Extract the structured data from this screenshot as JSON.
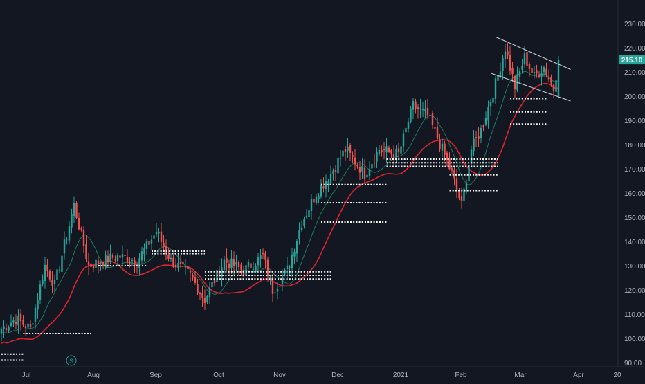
{
  "chart_data": {
    "type": "candlestick",
    "x_tick_labels": [
      "Jul",
      "Aug",
      "Sep",
      "Oct",
      "Nov",
      "Dec",
      "2021",
      "Feb",
      "Mar",
      "Apr",
      "20"
    ],
    "y_tick_labels": [
      "90.00",
      "100.00",
      "110.00",
      "120.00",
      "130.00",
      "140.00",
      "150.00",
      "160.00",
      "170.00",
      "180.00",
      "190.00",
      "200.00",
      "210.00",
      "220.00",
      "230.00"
    ],
    "ylim": [
      88,
      235
    ],
    "last_price": "215.10",
    "last_price_value": 215.1,
    "event_marker": "S",
    "anchors": [
      {
        "i": 0,
        "v": 104
      },
      {
        "i": 6,
        "v": 108
      },
      {
        "i": 12,
        "v": 104
      },
      {
        "i": 18,
        "v": 130
      },
      {
        "i": 22,
        "v": 122
      },
      {
        "i": 30,
        "v": 155
      },
      {
        "i": 36,
        "v": 130
      },
      {
        "i": 48,
        "v": 134
      },
      {
        "i": 56,
        "v": 132
      },
      {
        "i": 64,
        "v": 144
      },
      {
        "i": 70,
        "v": 132
      },
      {
        "i": 78,
        "v": 126
      },
      {
        "i": 84,
        "v": 116
      },
      {
        "i": 92,
        "v": 132
      },
      {
        "i": 100,
        "v": 128
      },
      {
        "i": 108,
        "v": 134
      },
      {
        "i": 112,
        "v": 120
      },
      {
        "i": 118,
        "v": 128
      },
      {
        "i": 124,
        "v": 148
      },
      {
        "i": 130,
        "v": 160
      },
      {
        "i": 136,
        "v": 168
      },
      {
        "i": 142,
        "v": 178
      },
      {
        "i": 150,
        "v": 168
      },
      {
        "i": 156,
        "v": 178
      },
      {
        "i": 164,
        "v": 176
      },
      {
        "i": 170,
        "v": 196
      },
      {
        "i": 176,
        "v": 192
      },
      {
        "i": 182,
        "v": 178
      },
      {
        "i": 186,
        "v": 168
      },
      {
        "i": 190,
        "v": 155
      },
      {
        "i": 194,
        "v": 178
      },
      {
        "i": 198,
        "v": 186
      },
      {
        "i": 204,
        "v": 205
      },
      {
        "i": 208,
        "v": 220
      },
      {
        "i": 212,
        "v": 204
      },
      {
        "i": 216,
        "v": 216
      },
      {
        "i": 220,
        "v": 208
      },
      {
        "i": 224,
        "v": 212
      },
      {
        "i": 228,
        "v": 203
      },
      {
        "i": 230,
        "v": 215
      }
    ],
    "ma_fast_period": 10,
    "ma_slow_period": 20,
    "levels": [
      {
        "from": 0,
        "to": 9,
        "value": 93.5
      },
      {
        "from": 0,
        "to": 9,
        "value": 91.0
      },
      {
        "from": 9,
        "to": 37,
        "value": 102.0
      },
      {
        "from": 40,
        "to": 60,
        "value": 130.0
      },
      {
        "from": 62,
        "to": 84,
        "value": 136.0
      },
      {
        "from": 62,
        "to": 84,
        "value": 135.0
      },
      {
        "from": 84,
        "to": 136,
        "value": 127.5
      },
      {
        "from": 84,
        "to": 136,
        "value": 126.0
      },
      {
        "from": 84,
        "to": 136,
        "value": 124.5
      },
      {
        "from": 132,
        "to": 159,
        "value": 163.5
      },
      {
        "from": 132,
        "to": 159,
        "value": 156.0
      },
      {
        "from": 132,
        "to": 159,
        "value": 148.0
      },
      {
        "from": 159,
        "to": 205,
        "value": 174.0
      },
      {
        "from": 159,
        "to": 205,
        "value": 172.5
      },
      {
        "from": 159,
        "to": 205,
        "value": 171.0
      },
      {
        "from": 185,
        "to": 205,
        "value": 167.5
      },
      {
        "from": 185,
        "to": 205,
        "value": 161.0
      },
      {
        "from": 210,
        "to": 225,
        "value": 199.0
      },
      {
        "from": 210,
        "to": 225,
        "value": 193.5
      },
      {
        "from": 210,
        "to": 225,
        "value": 188.5
      }
    ],
    "trendlines": [
      {
        "from_i": 204,
        "from_v": 224.5,
        "to_i": 235,
        "to_v": 211.0
      },
      {
        "from_i": 202,
        "from_v": 209.5,
        "to_i": 235,
        "to_v": 198.0
      }
    ],
    "colors": {
      "background": "#131722",
      "up": "#26a69a",
      "down": "#ef5350",
      "ma_fast": "#1b7f5f",
      "ma_slow": "#e0232e",
      "axis_text": "#b2b5be",
      "grid": "#1e222d",
      "levels": "#ffffff",
      "trendline": "#d1d4dc"
    }
  }
}
